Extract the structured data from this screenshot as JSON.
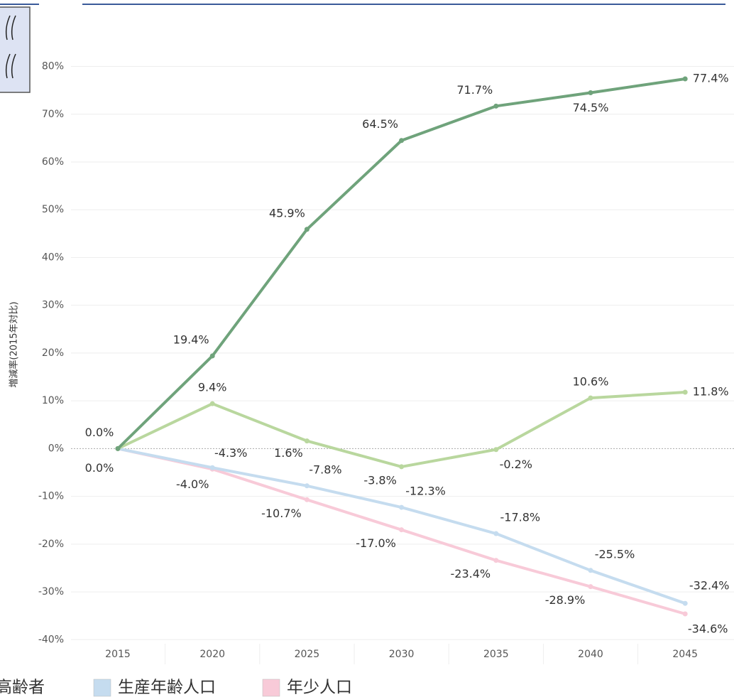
{
  "chart_data": {
    "type": "line",
    "y_label": "増減率(2015年対比)",
    "categories": [
      "2015",
      "2020",
      "2025",
      "2030",
      "2035",
      "2040",
      "2045"
    ],
    "ylim": [
      -40.7,
      83.5
    ],
    "yticks": [
      {
        "value": -40,
        "label": "-40%"
      },
      {
        "value": -30,
        "label": "-30%"
      },
      {
        "value": -20,
        "label": "-20%"
      },
      {
        "value": -10,
        "label": "-10%"
      },
      {
        "value": 0,
        "label": "0%"
      },
      {
        "value": 10,
        "label": "10%"
      },
      {
        "value": 20,
        "label": "20%"
      },
      {
        "value": 30,
        "label": "30%"
      },
      {
        "value": 40,
        "label": "40%"
      },
      {
        "value": 50,
        "label": "50%"
      },
      {
        "value": 60,
        "label": "60%"
      },
      {
        "value": 70,
        "label": "70%"
      },
      {
        "value": 80,
        "label": "80%"
      }
    ],
    "grid": true,
    "series": [
      {
        "color": "#6fa37b",
        "values": [
          0,
          19.4,
          45.9,
          64.5,
          71.7,
          74.5,
          77.4
        ],
        "value_labels": [
          "0.0%",
          "19.4%",
          "45.9%",
          "64.5%",
          "71.7%",
          "74.5%",
          "77.4%"
        ]
      },
      {
        "name": "高齢者",
        "color": "#b9d79e",
        "values": [
          0,
          9.4,
          1.6,
          -3.8,
          -0.2,
          10.6,
          11.8
        ],
        "value_labels": [
          null,
          "9.4%",
          "1.6%",
          "-3.8%",
          "-0.2%",
          "10.6%",
          "11.8%"
        ]
      },
      {
        "name": "生産年齢人口",
        "color": "#c5dcef",
        "values": [
          0,
          -4.0,
          -7.8,
          -12.3,
          -17.8,
          -25.5,
          -32.4
        ],
        "value_labels": [
          "0.0%",
          "-4.0%",
          "-7.8%",
          "-12.3%",
          "-17.8%",
          "-25.5%",
          "-32.4%"
        ]
      },
      {
        "name": "年少人口",
        "color": "#f8cad8",
        "values": [
          0,
          -4.3,
          -10.7,
          -17.0,
          -23.4,
          -28.9,
          -34.6
        ],
        "value_labels": [
          null,
          "-4.3%",
          "-10.7%",
          "-17.0%",
          "-23.4%",
          "-28.9%",
          "-34.6%"
        ]
      }
    ]
  }
}
